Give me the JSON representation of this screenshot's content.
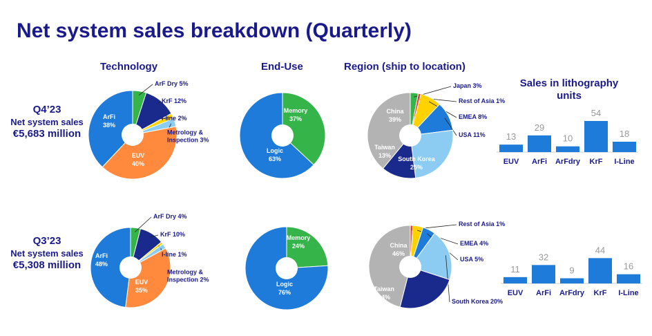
{
  "title": "Net system sales breakdown (Quarterly)",
  "column_headers": {
    "technology": "Technology",
    "end_use": "End-Use",
    "region": "Region (ship to location)"
  },
  "rows": [
    {
      "quarter": "Q4’23",
      "sales_label": "Net system sales",
      "sales_value": "€5,683 million"
    },
    {
      "quarter": "Q3’23",
      "sales_label": "Net system sales",
      "sales_value": "€5,308 million"
    }
  ],
  "colors": {
    "title": "#1a1a8c",
    "blue": "#1e7bd9",
    "orange": "#ff8a3d",
    "green": "#35b44a",
    "navy": "#1a2a8c",
    "yellow": "#ffd200",
    "light_blue": "#8cccf2",
    "gray": "#b3b3b3",
    "red": "#e8412c",
    "bar_value": "#999999"
  },
  "chart_data": [
    {
      "type": "pie",
      "title": "Technology",
      "row": "Q4’23",
      "slices": [
        {
          "name": "ArF Dry",
          "value": 5,
          "color": "#35b44a",
          "label": "ArF Dry 5%",
          "outside": true
        },
        {
          "name": "KrF",
          "value": 12,
          "color": "#1a2a8c",
          "label": "KrF 12%",
          "outside": true
        },
        {
          "name": "I-line",
          "value": 2,
          "color": "#ffd200",
          "label": "I-line 2%",
          "outside": true
        },
        {
          "name": "Metrology & Inspection",
          "value": 3,
          "color": "#8cccf2",
          "label": "Metrology &\nInspection 3%",
          "outside": true
        },
        {
          "name": "EUV",
          "value": 40,
          "color": "#ff8a3d",
          "label": "EUV\n40%",
          "outside": false
        },
        {
          "name": "ArFi",
          "value": 38,
          "color": "#1e7bd9",
          "label": "ArFi\n38%",
          "outside": false
        }
      ]
    },
    {
      "type": "pie",
      "title": "End-Use",
      "row": "Q4’23",
      "slices": [
        {
          "name": "Memory",
          "value": 37,
          "color": "#35b44a",
          "label": "Memory\n37%",
          "outside": false
        },
        {
          "name": "Logic",
          "value": 63,
          "color": "#1e7bd9",
          "label": "Logic\n63%",
          "outside": false
        }
      ]
    },
    {
      "type": "pie",
      "title": "Region (ship to location)",
      "row": "Q4’23",
      "slices": [
        {
          "name": "Japan",
          "value": 3,
          "color": "#35b44a",
          "label": "Japan 3%",
          "outside": true
        },
        {
          "name": "Rest of Asia",
          "value": 1,
          "color": "#e8412c",
          "label": "Rest of Asia 1%",
          "outside": true
        },
        {
          "name": "EMEA",
          "value": 8,
          "color": "#ffd200",
          "label": "EMEA 8%",
          "outside": true
        },
        {
          "name": "USA",
          "value": 11,
          "color": "#1e7bd9",
          "label": "USA 11%",
          "outside": true
        },
        {
          "name": "South Korea",
          "value": 25,
          "color": "#8cccf2",
          "label": "South Korea\n25%",
          "outside": false
        },
        {
          "name": "Taiwan",
          "value": 13,
          "color": "#1a2a8c",
          "label": "Taiwan\n13%",
          "outside": false
        },
        {
          "name": "China",
          "value": 39,
          "color": "#b3b3b3",
          "label": "China\n39%",
          "outside": false
        }
      ]
    },
    {
      "type": "bar",
      "title": "Sales in lithography units",
      "row": "Q4’23",
      "categories": [
        "EUV",
        "ArFi",
        "ArFdry",
        "KrF",
        "I-Line"
      ],
      "values": [
        13,
        29,
        10,
        54,
        18
      ],
      "color": "#1e7bd9"
    },
    {
      "type": "pie",
      "title": "Technology",
      "row": "Q3’23",
      "slices": [
        {
          "name": "ArF Dry",
          "value": 4,
          "color": "#35b44a",
          "label": "ArF Dry 4%",
          "outside": true
        },
        {
          "name": "KrF",
          "value": 10,
          "color": "#1a2a8c",
          "label": "KrF 10%",
          "outside": true
        },
        {
          "name": "I-line",
          "value": 1,
          "color": "#ffd200",
          "label": "I-line 1%",
          "outside": true
        },
        {
          "name": "Metrology & Inspection",
          "value": 2,
          "color": "#8cccf2",
          "label": "Metrology &\nInspection 2%",
          "outside": true
        },
        {
          "name": "EUV",
          "value": 35,
          "color": "#ff8a3d",
          "label": "EUV\n35%",
          "outside": false
        },
        {
          "name": "ArFi",
          "value": 48,
          "color": "#1e7bd9",
          "label": "ArFi\n48%",
          "outside": false
        }
      ]
    },
    {
      "type": "pie",
      "title": "End-Use",
      "row": "Q3’23",
      "slices": [
        {
          "name": "Memory",
          "value": 24,
          "color": "#35b44a",
          "label": "Memory\n24%",
          "outside": false
        },
        {
          "name": "Logic",
          "value": 76,
          "color": "#1e7bd9",
          "label": "Logic\n76%",
          "outside": false
        }
      ]
    },
    {
      "type": "pie",
      "title": "Region (ship to location)",
      "row": "Q3’23",
      "slices": [
        {
          "name": "Rest of Asia",
          "value": 1,
          "color": "#e8412c",
          "label": "Rest of Asia 1%",
          "outside": true
        },
        {
          "name": "EMEA",
          "value": 4,
          "color": "#ffd200",
          "label": "EMEA 4%",
          "outside": true
        },
        {
          "name": "USA",
          "value": 5,
          "color": "#1e7bd9",
          "label": "USA 5%",
          "outside": true
        },
        {
          "name": "South Korea",
          "value": 20,
          "color": "#8cccf2",
          "label": "South Korea 20%",
          "outside": true
        },
        {
          "name": "Taiwan",
          "value": 24,
          "color": "#1a2a8c",
          "label": "Taiwan\n24%",
          "outside": false
        },
        {
          "name": "China",
          "value": 46,
          "color": "#b3b3b3",
          "label": "China\n46%",
          "outside": false
        }
      ]
    },
    {
      "type": "bar",
      "title": "",
      "row": "Q3’23",
      "categories": [
        "EUV",
        "ArFi",
        "ArFdry",
        "KrF",
        "I-Line"
      ],
      "values": [
        11,
        32,
        9,
        44,
        16
      ],
      "color": "#1e7bd9"
    }
  ]
}
